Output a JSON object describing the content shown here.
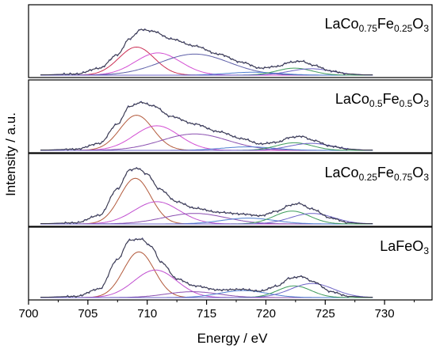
{
  "chart_data": {
    "type": "line",
    "xlabel": "Energy / eV",
    "ylabel": "Intensity / a.u.",
    "xlim": [
      700,
      734
    ],
    "x_ticks": [
      "700",
      "705",
      "710",
      "715",
      "720",
      "725",
      "730"
    ],
    "panels": [
      {
        "label_parts": [
          {
            "t": "LaCo",
            "sub": false
          },
          {
            "t": "0.75",
            "sub": true
          },
          {
            "t": "Fe",
            "sub": false
          },
          {
            "t": "0.25",
            "sub": true
          },
          {
            "t": "O",
            "sub": false
          },
          {
            "t": "3",
            "sub": true
          }
        ],
        "envelope_x": [
          701,
          704,
          706,
          707.5,
          708.5,
          709.5,
          710.5,
          712,
          714,
          716,
          718,
          719.5,
          721,
          722,
          723,
          724,
          725.5,
          727,
          728.5
        ],
        "envelope_y": [
          0.005,
          0.02,
          0.12,
          0.35,
          0.62,
          0.78,
          0.75,
          0.62,
          0.5,
          0.36,
          0.22,
          0.12,
          0.15,
          0.22,
          0.24,
          0.17,
          0.07,
          0.02,
          0.005
        ],
        "components": [
          {
            "center": 709.1,
            "height": 0.48,
            "width": 1.5,
            "color": "#cc2f55"
          },
          {
            "center": 710.9,
            "height": 0.38,
            "width": 1.9,
            "color": "#d34fd3"
          },
          {
            "center": 714.0,
            "height": 0.36,
            "width": 2.9,
            "color": "#5d5fa8"
          },
          {
            "center": 718.9,
            "height": 0.05,
            "width": 2.2,
            "color": "#4f7fd0"
          },
          {
            "center": 722.4,
            "height": 0.12,
            "width": 1.5,
            "color": "#3e9b5b"
          },
          {
            "center": 723.8,
            "height": 0.11,
            "width": 1.8,
            "color": "#6d63c7"
          }
        ]
      },
      {
        "label_parts": [
          {
            "t": "LaCo",
            "sub": false
          },
          {
            "t": "0.5",
            "sub": true
          },
          {
            "t": "Fe",
            "sub": false
          },
          {
            "t": "0.5",
            "sub": true
          },
          {
            "t": "O",
            "sub": false
          },
          {
            "t": "3",
            "sub": true
          }
        ],
        "envelope_x": [
          701,
          704,
          706,
          707.5,
          708.5,
          709.5,
          710.5,
          712,
          714,
          716,
          718,
          719.5,
          721,
          722,
          723,
          724,
          725.5,
          727,
          728.5
        ],
        "envelope_y": [
          0.005,
          0.02,
          0.12,
          0.45,
          0.75,
          0.82,
          0.76,
          0.58,
          0.45,
          0.32,
          0.2,
          0.11,
          0.14,
          0.22,
          0.24,
          0.17,
          0.07,
          0.02,
          0.005
        ],
        "components": [
          {
            "center": 709.1,
            "height": 0.6,
            "width": 1.4,
            "color": "#b35a3c"
          },
          {
            "center": 710.8,
            "height": 0.42,
            "width": 1.9,
            "color": "#d34fd3"
          },
          {
            "center": 714.0,
            "height": 0.28,
            "width": 2.8,
            "color": "#8a4fb0"
          },
          {
            "center": 718.5,
            "height": 0.06,
            "width": 2.2,
            "color": "#4f7fd0"
          },
          {
            "center": 722.4,
            "height": 0.13,
            "width": 1.5,
            "color": "#3e9b5b"
          },
          {
            "center": 723.8,
            "height": 0.12,
            "width": 1.8,
            "color": "#6d63c7"
          }
        ]
      },
      {
        "label_parts": [
          {
            "t": "LaCo",
            "sub": false
          },
          {
            "t": "0.25",
            "sub": true
          },
          {
            "t": "Fe",
            "sub": false
          },
          {
            "t": "0.75",
            "sub": true
          },
          {
            "t": "O",
            "sub": false
          },
          {
            "t": "3",
            "sub": true
          }
        ],
        "envelope_x": [
          701,
          704,
          706,
          707.5,
          708.5,
          709.2,
          710,
          711,
          712.5,
          714,
          716,
          718,
          719.5,
          721,
          722,
          722.8,
          723.8,
          725.5,
          727,
          728.5
        ],
        "envelope_y": [
          0.005,
          0.02,
          0.15,
          0.6,
          0.92,
          0.95,
          0.85,
          0.6,
          0.38,
          0.27,
          0.2,
          0.17,
          0.14,
          0.22,
          0.32,
          0.35,
          0.26,
          0.1,
          0.02,
          0.005
        ],
        "components": [
          {
            "center": 709.0,
            "height": 0.78,
            "width": 1.3,
            "color": "#b35a3c"
          },
          {
            "center": 710.8,
            "height": 0.38,
            "width": 1.9,
            "color": "#c04fd0"
          },
          {
            "center": 714.0,
            "height": 0.18,
            "width": 2.6,
            "color": "#8a4fb0"
          },
          {
            "center": 718.5,
            "height": 0.1,
            "width": 2.2,
            "color": "#4f7fd0"
          },
          {
            "center": 722.2,
            "height": 0.22,
            "width": 1.5,
            "color": "#3e9b5b"
          },
          {
            "center": 723.9,
            "height": 0.18,
            "width": 1.8,
            "color": "#6d63c7"
          }
        ]
      },
      {
        "label_parts": [
          {
            "t": "LaFeO",
            "sub": false
          },
          {
            "t": "3",
            "sub": true
          }
        ],
        "envelope_x": [
          701,
          704,
          706,
          707.5,
          708.5,
          709.5,
          710.3,
          711.2,
          712.5,
          714,
          716,
          718,
          719.5,
          721,
          722,
          723,
          724,
          725.5,
          727,
          728.5
        ],
        "envelope_y": [
          0.005,
          0.02,
          0.15,
          0.65,
          0.98,
          1.0,
          0.88,
          0.6,
          0.32,
          0.2,
          0.13,
          0.14,
          0.11,
          0.2,
          0.33,
          0.36,
          0.27,
          0.1,
          0.02,
          0.005
        ],
        "components": [
          {
            "center": 709.3,
            "height": 0.78,
            "width": 1.3,
            "color": "#b35a3c"
          },
          {
            "center": 710.7,
            "height": 0.47,
            "width": 1.8,
            "color": "#c04fd0"
          },
          {
            "center": 713.8,
            "height": 0.1,
            "width": 2.2,
            "color": "#8a4fb0"
          },
          {
            "center": 718.1,
            "height": 0.12,
            "width": 2.0,
            "color": "#4f7fd0"
          },
          {
            "center": 722.4,
            "height": 0.2,
            "width": 1.4,
            "color": "#3e9b5b"
          },
          {
            "center": 723.9,
            "height": 0.24,
            "width": 1.8,
            "color": "#6d63c7"
          }
        ]
      }
    ]
  }
}
